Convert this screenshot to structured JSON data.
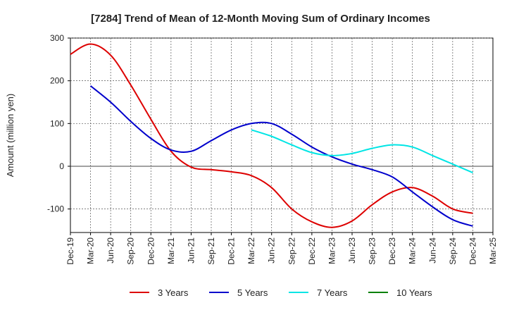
{
  "chart_data": {
    "type": "line",
    "title": "[7284]  Trend of Mean of 12-Month Moving Sum of Ordinary Incomes",
    "xlabel": "",
    "ylabel": "Amount (million yen)",
    "ylim": [
      -155,
      300
    ],
    "yticks": [
      300,
      200,
      100,
      0,
      -100
    ],
    "yticklabels": [
      "300",
      "200",
      "100",
      "0",
      "-100"
    ],
    "xlim": [
      "Dec-19",
      "Mar-25"
    ],
    "categories": [
      "Dec-19",
      "Mar-20",
      "Jun-20",
      "Sep-20",
      "Dec-20",
      "Mar-21",
      "Jun-21",
      "Sep-21",
      "Dec-21",
      "Mar-22",
      "Jun-22",
      "Sep-22",
      "Dec-22",
      "Mar-23",
      "Jun-23",
      "Sep-23",
      "Dec-23",
      "Mar-24",
      "Jun-24",
      "Sep-24",
      "Dec-24",
      "Mar-25"
    ],
    "grid": true,
    "legend_position": "bottom",
    "series": [
      {
        "name": "3 Years",
        "color": "#dd0000",
        "points": [
          [
            "Dec-19",
            262
          ],
          [
            "Mar-20",
            286
          ],
          [
            "Jun-20",
            260
          ],
          [
            "Sep-20",
            190
          ],
          [
            "Dec-20",
            110
          ],
          [
            "Mar-21",
            35
          ],
          [
            "Jun-21",
            -2
          ],
          [
            "Sep-21",
            -8
          ],
          [
            "Dec-21",
            -13
          ],
          [
            "Mar-22",
            -22
          ],
          [
            "Jun-22",
            -50
          ],
          [
            "Sep-22",
            -100
          ],
          [
            "Dec-22",
            -130
          ],
          [
            "Mar-23",
            -143
          ],
          [
            "Jun-23",
            -128
          ],
          [
            "Sep-23",
            -90
          ],
          [
            "Dec-23",
            -60
          ],
          [
            "Mar-24",
            -50
          ],
          [
            "Jun-24",
            -70
          ],
          [
            "Sep-24",
            -100
          ],
          [
            "Dec-24",
            -110
          ]
        ]
      },
      {
        "name": "5 Years",
        "color": "#0000cc",
        "points": [
          [
            "Mar-20",
            188
          ],
          [
            "Jun-20",
            150
          ],
          [
            "Sep-20",
            105
          ],
          [
            "Dec-20",
            65
          ],
          [
            "Mar-21",
            38
          ],
          [
            "Jun-21",
            35
          ],
          [
            "Sep-21",
            60
          ],
          [
            "Dec-21",
            85
          ],
          [
            "Mar-22",
            100
          ],
          [
            "Jun-22",
            100
          ],
          [
            "Sep-22",
            75
          ],
          [
            "Dec-22",
            45
          ],
          [
            "Mar-23",
            22
          ],
          [
            "Jun-23",
            5
          ],
          [
            "Sep-23",
            -8
          ],
          [
            "Dec-23",
            -25
          ],
          [
            "Mar-24",
            -60
          ],
          [
            "Jun-24",
            -95
          ],
          [
            "Sep-24",
            -125
          ],
          [
            "Dec-24",
            -140
          ]
        ]
      },
      {
        "name": "7 Years",
        "color": "#00e5e5",
        "points": [
          [
            "Mar-22",
            85
          ],
          [
            "Jun-22",
            70
          ],
          [
            "Sep-22",
            50
          ],
          [
            "Dec-22",
            32
          ],
          [
            "Mar-23",
            25
          ],
          [
            "Jun-23",
            30
          ],
          [
            "Sep-23",
            42
          ],
          [
            "Dec-23",
            50
          ],
          [
            "Mar-24",
            45
          ],
          [
            "Jun-24",
            25
          ],
          [
            "Sep-24",
            5
          ],
          [
            "Dec-24",
            -15
          ]
        ]
      },
      {
        "name": "10 Years",
        "color": "#008000",
        "points": []
      }
    ]
  }
}
